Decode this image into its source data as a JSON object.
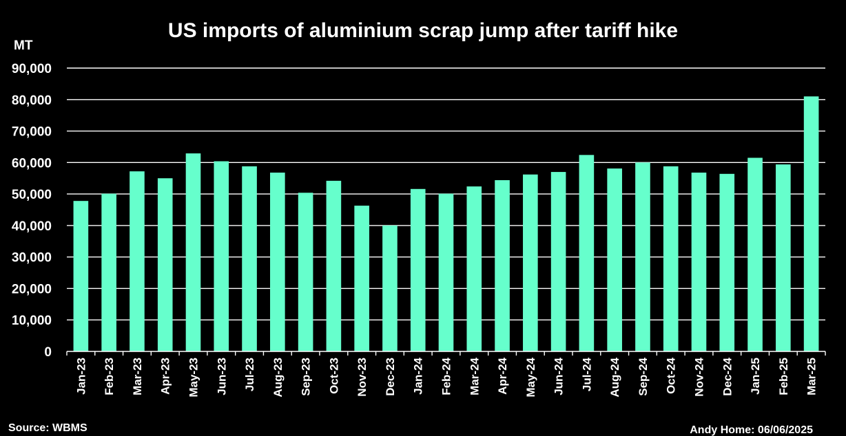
{
  "source_label": "Source: WBMS",
  "credit_label": "Andy Home: 06/06/2025",
  "colors": {
    "background": "#000000",
    "bar": "#66ffcc",
    "text": "#ffffff",
    "grid": "#ffffff"
  },
  "chart_data": {
    "type": "bar",
    "title": "US imports of aluminium scrap jump after tariff hike",
    "ylabel": "MT",
    "xlabel": "",
    "ylim": [
      0,
      90000
    ],
    "yticks": [
      0,
      10000,
      20000,
      30000,
      40000,
      50000,
      60000,
      70000,
      80000,
      90000
    ],
    "ytick_labels": [
      "0",
      "10,000",
      "20,000",
      "30,000",
      "40,000",
      "50,000",
      "60,000",
      "70,000",
      "80,000",
      "90,000"
    ],
    "grid": true,
    "legend": "none",
    "categories": [
      "Jan-23",
      "Feb-23",
      "Mar-23",
      "Apr-23",
      "May-23",
      "Jun-23",
      "Jul-23",
      "Aug-23",
      "Sep-23",
      "Oct-23",
      "Nov-23",
      "Dec-23",
      "Jan-24",
      "Feb-24",
      "Mar-24",
      "Apr-24",
      "May-24",
      "Jun-24",
      "Jul-24",
      "Aug-24",
      "Sep-24",
      "Oct-24",
      "Nov-24",
      "Dec-24",
      "Jan-25",
      "Feb-25",
      "Mar-25"
    ],
    "values": [
      47800,
      50100,
      57200,
      55000,
      62900,
      60400,
      58800,
      56800,
      50400,
      54200,
      46300,
      40000,
      51600,
      50100,
      52400,
      54400,
      56200,
      57000,
      62400,
      58100,
      60000,
      58800,
      56800,
      56400,
      61500,
      59400,
      81000
    ]
  }
}
